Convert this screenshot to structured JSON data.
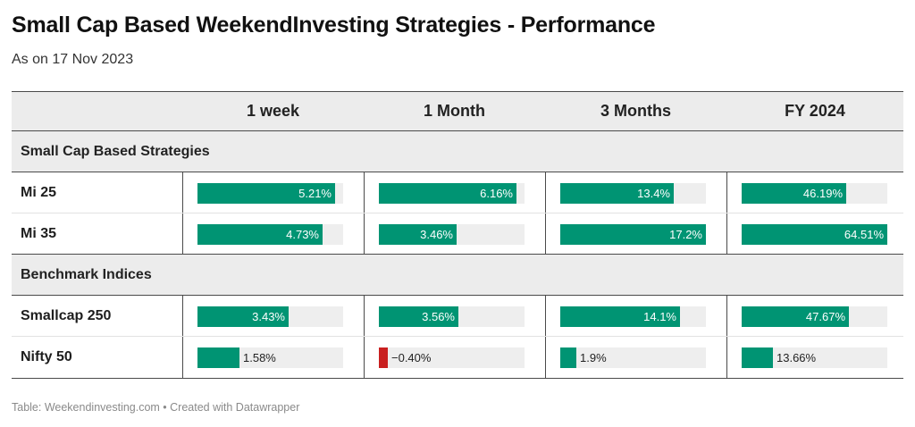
{
  "title": "Small Cap Based WeekendInvesting Strategies - Performance",
  "subtitle": "As on 17 Nov 2023",
  "footer": "Table: Weekendinvesting.com • Created with Datawrapper",
  "colors": {
    "positive": "#009473",
    "negative": "#c92020",
    "track": "#eeeeee",
    "header_bg": "#ececec"
  },
  "chart_data": {
    "type": "table",
    "columns": [
      "1 week",
      "1 Month",
      "3 Months",
      "FY 2024"
    ],
    "column_max": [
      5.5,
      6.5,
      17.2,
      64.51
    ],
    "groups": [
      {
        "name": "Small Cap Based Strategies",
        "rows": [
          {
            "label": "Mi 25",
            "values": [
              5.21,
              6.16,
              13.4,
              46.19
            ],
            "display": [
              "5.21%",
              "6.16%",
              "13.4%",
              "46.19%"
            ]
          },
          {
            "label": "Mi 35",
            "values": [
              4.73,
              3.46,
              17.2,
              64.51
            ],
            "display": [
              "4.73%",
              "3.46%",
              "17.2%",
              "64.51%"
            ]
          }
        ]
      },
      {
        "name": "Benchmark Indices",
        "rows": [
          {
            "label": "Smallcap 250",
            "values": [
              3.43,
              3.56,
              14.1,
              47.67
            ],
            "display": [
              "3.43%",
              "3.56%",
              "14.1%",
              "47.67%"
            ]
          },
          {
            "label": "Nifty 50",
            "values": [
              1.58,
              -0.4,
              1.9,
              13.66
            ],
            "display": [
              "1.58%",
              "−0.40%",
              "1.9%",
              "13.66%"
            ]
          }
        ]
      }
    ]
  }
}
